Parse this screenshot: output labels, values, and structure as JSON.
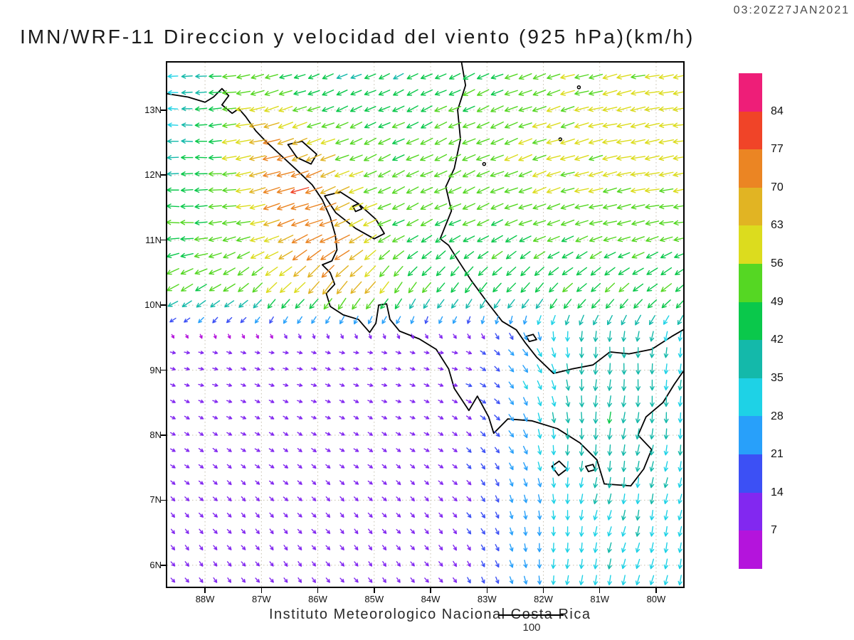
{
  "header": {
    "timestamp": "03:20Z27JAN2021",
    "title": "IMN/WRF-11 Direccion y velocidad del viento (925 hPa)(km/h)"
  },
  "footer": {
    "caption": "Instituto Meteorologico Nacional Costa Rica",
    "reference_value": "100"
  },
  "chart_data": {
    "type": "vector-field-map",
    "model": "IMN/WRF-11",
    "variable": "Direccion y velocidad del viento",
    "level": "925 hPa",
    "units": "km/h",
    "valid_time": "03:20Z27JAN2021",
    "lon_range": [
      -88.67,
      -79.52
    ],
    "lat_range": [
      5.67,
      13.73
    ],
    "grid_step_deg": 0.25,
    "x_axis": {
      "ticks": [
        {
          "label": "88W",
          "value": -88
        },
        {
          "label": "87W",
          "value": -87
        },
        {
          "label": "86W",
          "value": -86
        },
        {
          "label": "85W",
          "value": -85
        },
        {
          "label": "84W",
          "value": -84
        },
        {
          "label": "83W",
          "value": -83
        },
        {
          "label": "82W",
          "value": -82
        },
        {
          "label": "81W",
          "value": -81
        },
        {
          "label": "80W",
          "value": -80
        }
      ]
    },
    "y_axis": {
      "ticks": [
        {
          "label": "6N",
          "value": 6
        },
        {
          "label": "7N",
          "value": 7
        },
        {
          "label": "8N",
          "value": 8
        },
        {
          "label": "9N",
          "value": 9
        },
        {
          "label": "10N",
          "value": 10
        },
        {
          "label": "11N",
          "value": 11
        },
        {
          "label": "12N",
          "value": 12
        },
        {
          "label": "13N",
          "value": 13
        }
      ]
    },
    "colorbar": {
      "levels": [
        7,
        14,
        21,
        28,
        35,
        42,
        49,
        56,
        63,
        70,
        77,
        84
      ],
      "colors": [
        "#b414dc",
        "#8228f0",
        "#3c50f5",
        "#28a0fa",
        "#1ed2e6",
        "#14b9aa",
        "#0ac84b",
        "#55d723",
        "#dcdc1e",
        "#e1b423",
        "#eb8523",
        "#f04428",
        "#ee1e78"
      ]
    },
    "wind_model": {
      "north_base": 51,
      "jet_amp": 29,
      "jet_lon_center": -86.7,
      "jet_lon_sigma": 1.3,
      "south_base": 9,
      "south_east_amp": 22,
      "transition_lat": 10.3,
      "transition_width": 1.0
    },
    "coastlines": [
      [
        [
          -88.67,
          13.25
        ],
        [
          -88.3,
          13.2
        ],
        [
          -88.0,
          13.12
        ],
        [
          -87.85,
          13.2
        ],
        [
          -87.7,
          13.33
        ],
        [
          -87.58,
          13.22
        ],
        [
          -87.7,
          13.08
        ],
        [
          -87.52,
          12.95
        ],
        [
          -87.4,
          13.02
        ],
        [
          -87.28,
          12.9
        ],
        [
          -87.1,
          12.68
        ],
        [
          -86.9,
          12.5
        ],
        [
          -86.65,
          12.3
        ],
        [
          -86.4,
          12.1
        ],
        [
          -86.1,
          11.85
        ],
        [
          -85.92,
          11.62
        ],
        [
          -85.78,
          11.35
        ],
        [
          -85.69,
          11.08
        ],
        [
          -85.66,
          10.85
        ],
        [
          -85.75,
          10.68
        ],
        [
          -85.92,
          10.62
        ],
        [
          -85.78,
          10.5
        ],
        [
          -85.7,
          10.32
        ],
        [
          -85.85,
          10.18
        ],
        [
          -85.78,
          9.98
        ],
        [
          -85.55,
          9.85
        ],
        [
          -85.28,
          9.78
        ],
        [
          -85.08,
          9.58
        ],
        [
          -84.97,
          9.72
        ],
        [
          -84.92,
          10.0
        ],
        [
          -84.78,
          10.02
        ],
        [
          -84.72,
          9.78
        ],
        [
          -84.55,
          9.6
        ],
        [
          -84.2,
          9.48
        ],
        [
          -83.9,
          9.32
        ],
        [
          -83.68,
          9.02
        ],
        [
          -83.58,
          8.72
        ],
        [
          -83.32,
          8.38
        ],
        [
          -83.17,
          8.6
        ],
        [
          -82.97,
          8.28
        ],
        [
          -82.88,
          8.03
        ],
        [
          -82.63,
          8.25
        ],
        [
          -82.2,
          8.22
        ],
        [
          -81.75,
          8.1
        ],
        [
          -81.35,
          7.88
        ],
        [
          -81.05,
          7.62
        ],
        [
          -80.92,
          7.25
        ],
        [
          -80.45,
          7.22
        ],
        [
          -80.22,
          7.48
        ],
        [
          -80.08,
          7.78
        ],
        [
          -80.32,
          8.0
        ],
        [
          -80.18,
          8.28
        ],
        [
          -79.88,
          8.5
        ],
        [
          -79.68,
          8.78
        ],
        [
          -79.52,
          8.98
        ]
      ],
      [
        [
          -83.45,
          13.73
        ],
        [
          -83.38,
          13.38
        ],
        [
          -83.52,
          13.0
        ],
        [
          -83.47,
          12.55
        ],
        [
          -83.58,
          12.1
        ],
        [
          -83.73,
          11.82
        ],
        [
          -83.63,
          11.45
        ],
        [
          -83.83,
          11.02
        ],
        [
          -83.68,
          10.92
        ],
        [
          -83.52,
          10.7
        ],
        [
          -83.28,
          10.38
        ],
        [
          -83.0,
          10.05
        ],
        [
          -82.73,
          9.75
        ],
        [
          -82.48,
          9.62
        ],
        [
          -82.32,
          9.42
        ],
        [
          -82.12,
          9.2
        ],
        [
          -81.82,
          8.95
        ],
        [
          -81.48,
          9.02
        ],
        [
          -81.12,
          9.08
        ],
        [
          -80.82,
          9.28
        ],
        [
          -80.48,
          9.25
        ],
        [
          -80.08,
          9.32
        ],
        [
          -79.72,
          9.52
        ],
        [
          -79.52,
          9.62
        ]
      ],
      [
        [
          -85.88,
          11.68
        ],
        [
          -85.6,
          11.74
        ],
        [
          -85.28,
          11.56
        ],
        [
          -84.97,
          11.32
        ],
        [
          -84.82,
          11.1
        ],
        [
          -85.0,
          11.02
        ],
        [
          -85.33,
          11.18
        ],
        [
          -85.68,
          11.42
        ],
        [
          -85.88,
          11.68
        ]
      ],
      [
        [
          -85.38,
          11.52
        ],
        [
          -85.28,
          11.56
        ],
        [
          -85.22,
          11.48
        ],
        [
          -85.33,
          11.44
        ],
        [
          -85.38,
          11.52
        ]
      ],
      [
        [
          -86.53,
          12.47
        ],
        [
          -86.28,
          12.52
        ],
        [
          -86.02,
          12.32
        ],
        [
          -86.12,
          12.17
        ],
        [
          -86.37,
          12.27
        ],
        [
          -86.53,
          12.47
        ]
      ],
      [
        [
          -81.85,
          7.52
        ],
        [
          -81.72,
          7.6
        ],
        [
          -81.58,
          7.48
        ],
        [
          -81.73,
          7.38
        ],
        [
          -81.85,
          7.52
        ]
      ],
      [
        [
          -81.25,
          7.52
        ],
        [
          -81.12,
          7.55
        ],
        [
          -81.08,
          7.47
        ],
        [
          -81.2,
          7.44
        ],
        [
          -81.25,
          7.52
        ]
      ],
      [
        [
          -82.3,
          9.52
        ],
        [
          -82.18,
          9.55
        ],
        [
          -82.12,
          9.47
        ],
        [
          -82.25,
          9.44
        ],
        [
          -82.3,
          9.52
        ]
      ]
    ],
    "island_dots": [
      [
        -81.7,
        12.55
      ],
      [
        -81.37,
        13.35
      ],
      [
        -83.05,
        12.17
      ]
    ]
  }
}
